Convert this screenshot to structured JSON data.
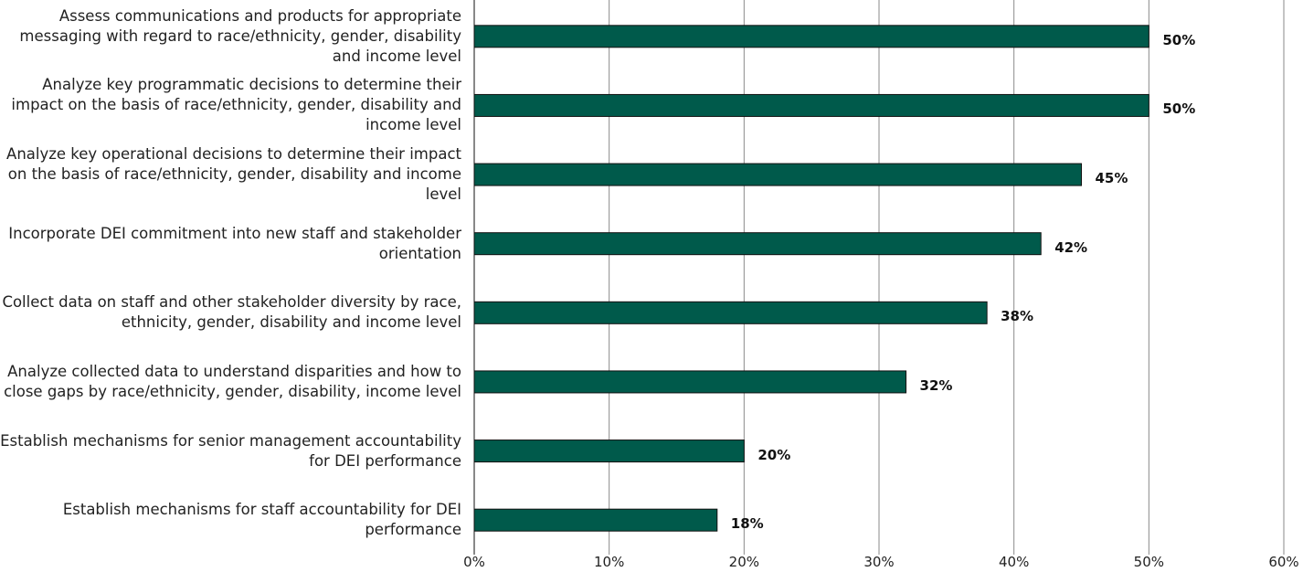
{
  "chart_data": {
    "type": "bar",
    "orientation": "horizontal",
    "categories": [
      "Assess communications and products for appropriate messaging with regard to race/ethnicity, gender, disability and income level",
      "Analyze key programmatic decisions to determine their impact on the basis of race/ethnicity, gender, disability and income level",
      "Analyze key operational decisions to determine their impact on the basis of race/ethnicity, gender, disability and income level",
      "Incorporate DEI commitment into new staff and stakeholder orientation",
      "Collect data on staff and other stakeholder diversity by race, ethnicity, gender, disability and income level",
      "Analyze collected data to understand disparities and how to close gaps by race/ethnicity, gender, disability, income level",
      "Establish mechanisms for senior management accountability for DEI performance",
      "Establish mechanisms for staff accountability for DEI performance"
    ],
    "values": [
      50,
      50,
      45,
      42,
      38,
      32,
      20,
      18
    ],
    "value_labels": [
      "50%",
      "50%",
      "45%",
      "42%",
      "38%",
      "32%",
      "20%",
      "18%"
    ],
    "color": "#005a4b",
    "xlim": [
      0,
      60
    ],
    "xticks": [
      {
        "value": 0,
        "label": "0%"
      },
      {
        "value": 10,
        "label": "10%"
      },
      {
        "value": 20,
        "label": "20%"
      },
      {
        "value": 30,
        "label": "30%"
      },
      {
        "value": 40,
        "label": "40%"
      },
      {
        "value": 50,
        "label": "50%"
      },
      {
        "value": 60,
        "label": "60%"
      }
    ],
    "grid": true
  }
}
